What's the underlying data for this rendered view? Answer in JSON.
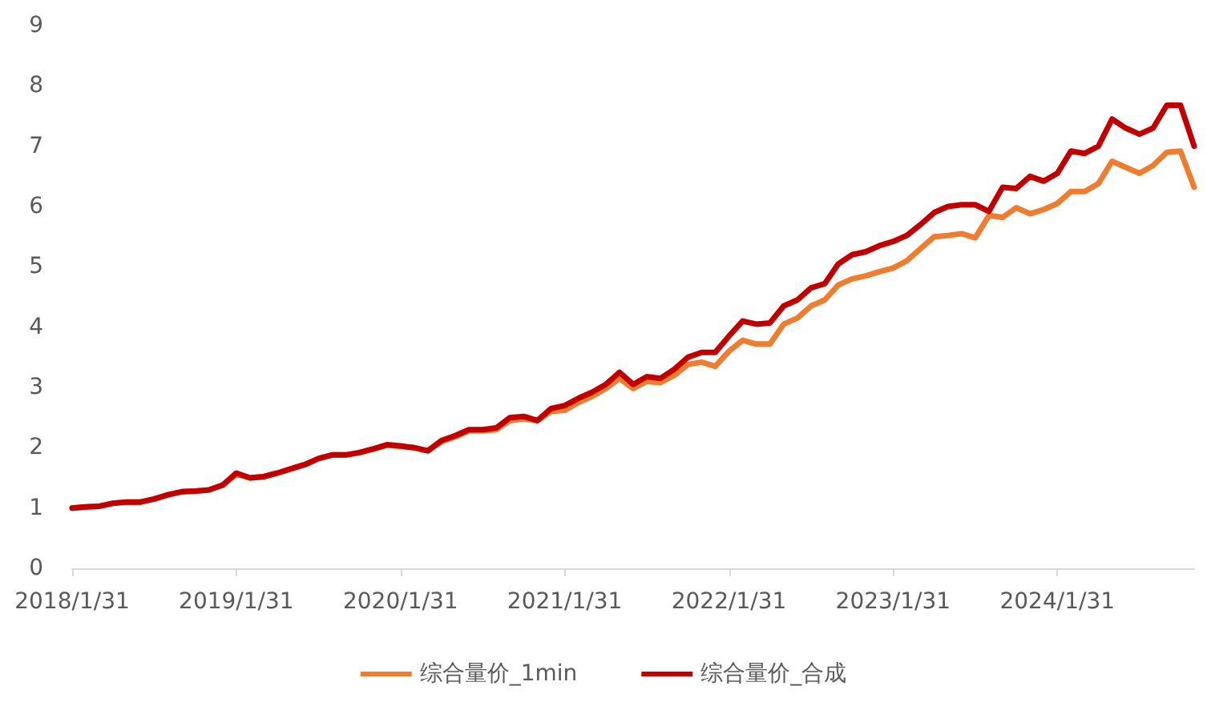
{
  "chart_data": {
    "type": "line",
    "categories": [
      "2018/1/31",
      null,
      null,
      null,
      null,
      null,
      null,
      null,
      null,
      null,
      null,
      null,
      "2019/1/31",
      null,
      null,
      null,
      null,
      null,
      null,
      null,
      null,
      null,
      null,
      null,
      "2020/1/31",
      null,
      null,
      null,
      null,
      null,
      null,
      null,
      null,
      null,
      null,
      null,
      "2021/1/31",
      null,
      null,
      null,
      null,
      null,
      null,
      null,
      null,
      null,
      null,
      null,
      "2022/1/31",
      null,
      null,
      null,
      null,
      null,
      null,
      null,
      null,
      null,
      null,
      null,
      "2023/1/31",
      null,
      null,
      null,
      null,
      null,
      null,
      null,
      null,
      null,
      null,
      null,
      "2024/1/31",
      null,
      null,
      null,
      null,
      null,
      null,
      null,
      null,
      null,
      null
    ],
    "series": [
      {
        "name": "综合量价_1min",
        "color": "#ed7d31",
        "values": [
          1.0,
          1.02,
          1.03,
          1.08,
          1.1,
          1.1,
          1.15,
          1.22,
          1.27,
          1.28,
          1.3,
          1.38,
          1.56,
          1.5,
          1.52,
          1.58,
          1.65,
          1.72,
          1.82,
          1.88,
          1.88,
          1.92,
          1.98,
          2.04,
          2.02,
          2.0,
          1.95,
          2.1,
          2.18,
          2.28,
          2.28,
          2.3,
          2.45,
          2.48,
          2.45,
          2.6,
          2.62,
          2.75,
          2.85,
          2.98,
          3.15,
          2.98,
          3.1,
          3.08,
          3.2,
          3.38,
          3.42,
          3.35,
          3.6,
          3.78,
          3.72,
          3.72,
          4.05,
          4.15,
          4.35,
          4.45,
          4.7,
          4.8,
          4.85,
          4.92,
          4.98,
          5.1,
          5.3,
          5.5,
          5.52,
          5.55,
          5.48,
          5.85,
          5.82,
          5.98,
          5.88,
          5.95,
          6.05,
          6.25,
          6.25,
          6.38,
          6.75,
          6.65,
          6.55,
          6.68,
          6.9,
          6.92,
          6.32
        ]
      },
      {
        "name": "综合量价_合成",
        "color": "#c00000",
        "values": [
          1.0,
          1.02,
          1.03,
          1.08,
          1.1,
          1.1,
          1.15,
          1.22,
          1.27,
          1.28,
          1.3,
          1.38,
          1.58,
          1.5,
          1.52,
          1.58,
          1.65,
          1.72,
          1.82,
          1.88,
          1.88,
          1.92,
          1.98,
          2.05,
          2.03,
          2.0,
          1.95,
          2.12,
          2.2,
          2.3,
          2.3,
          2.33,
          2.5,
          2.52,
          2.45,
          2.65,
          2.7,
          2.82,
          2.92,
          3.05,
          3.25,
          3.05,
          3.18,
          3.15,
          3.3,
          3.5,
          3.58,
          3.58,
          3.85,
          4.1,
          4.05,
          4.07,
          4.35,
          4.45,
          4.65,
          4.72,
          5.05,
          5.2,
          5.25,
          5.35,
          5.42,
          5.52,
          5.7,
          5.9,
          6.0,
          6.03,
          6.03,
          5.92,
          6.32,
          6.3,
          6.5,
          6.42,
          6.55,
          6.92,
          6.88,
          7.0,
          7.45,
          7.3,
          7.2,
          7.3,
          7.68,
          7.68,
          7.0
        ]
      }
    ],
    "ylim": [
      0,
      9
    ],
    "yticks": [
      0,
      1,
      2,
      3,
      4,
      5,
      6,
      7,
      8,
      9
    ],
    "grid": false,
    "legend": "bottom",
    "marker": "none",
    "line_style": "solid"
  }
}
